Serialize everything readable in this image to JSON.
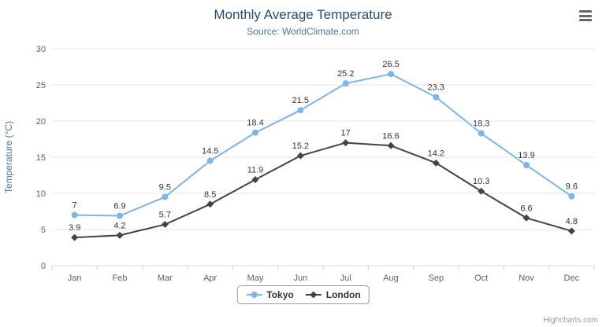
{
  "chart_data": {
    "type": "line",
    "title": "Monthly Average Temperature",
    "subtitle": "Source: WorldClimate.com",
    "categories": [
      "Jan",
      "Feb",
      "Mar",
      "Apr",
      "May",
      "Jun",
      "Jul",
      "Aug",
      "Sep",
      "Oct",
      "Nov",
      "Dec"
    ],
    "series": [
      {
        "name": "Tokyo",
        "marker": "circle",
        "color": "#7cb5ec",
        "values": [
          7,
          6.9,
          9.5,
          14.5,
          18.4,
          21.5,
          25.2,
          26.5,
          23.3,
          18.3,
          13.9,
          9.6
        ]
      },
      {
        "name": "London",
        "marker": "diamond",
        "color": "#434348",
        "values": [
          3.9,
          4.2,
          5.7,
          8.5,
          11.9,
          15.2,
          17,
          16.6,
          14.2,
          10.3,
          6.6,
          4.8
        ]
      }
    ],
    "xlabel": "",
    "ylabel": "Temperature (°C)",
    "ylim": [
      0,
      30
    ],
    "ytick_interval": 5,
    "yticks": [
      0,
      5,
      10,
      15,
      20,
      25,
      30
    ],
    "grid": true,
    "data_labels": true,
    "legend_position": "bottom"
  },
  "colors": {
    "title": "#274b6d",
    "subtitle": "#4d759e",
    "axis_label": "#606060",
    "axis_title": "#4d759e",
    "grid_line": "#e6e6e6",
    "axis_line": "#ccd6eb",
    "data_label": "#333333",
    "legend_text": "#333333",
    "credits": "#999999"
  },
  "credits": "Highcharts.com",
  "menu": {
    "icon": "hamburger-menu-icon"
  }
}
